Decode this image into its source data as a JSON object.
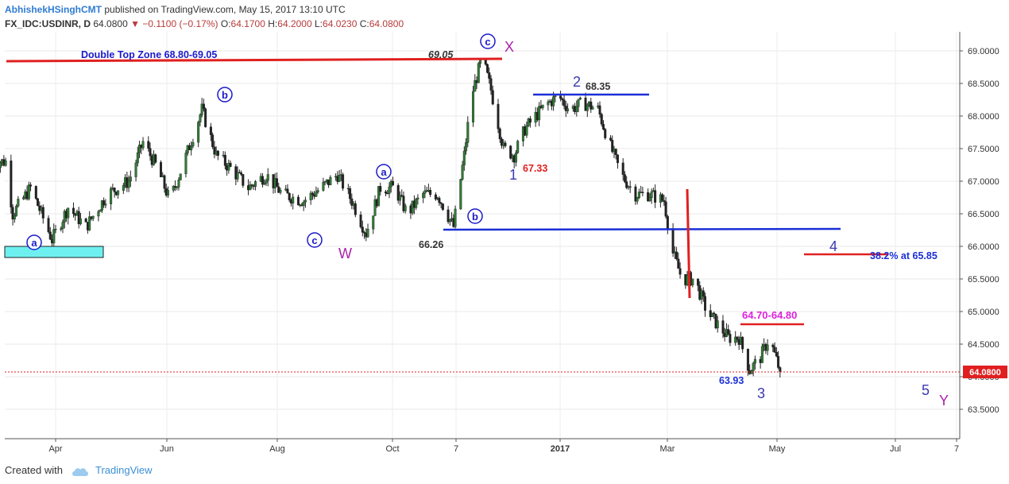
{
  "header": {
    "author": "AbhishekHSinghCMT",
    "published": "published on TradingView.com, May 15, 2017 13:10 UTC"
  },
  "ohlc": {
    "symbol": "FX_IDC:USDINR, D",
    "last": "64.0800",
    "arrow": "▼",
    "change": "−0.1100 (−0.17%)",
    "open_label": "O:",
    "open": "64.1700",
    "high_label": "H:",
    "high": "64.2000",
    "low_label": "L:",
    "low": "64.0230",
    "close_label": "C:",
    "close": "64.0800"
  },
  "footer": {
    "created_with": "Created with",
    "brand": "TradingView"
  },
  "colors": {
    "up": "#2e7d32",
    "down": "#222222",
    "red_line": "#e02020",
    "blue_line": "#1a2fd6",
    "wave_blue": "#1a1acc",
    "wave_purple": "#aa22aa",
    "price_tag": "#e02020",
    "zone": "#6ff0f0"
  },
  "chart_data": {
    "type": "candlestick",
    "symbol": "FX_IDC:USDINR",
    "timeframe": "D",
    "y_ticks": [
      "63.5000",
      "64.0000",
      "64.5000",
      "65.0000",
      "65.5000",
      "66.0000",
      "66.5000",
      "67.0000",
      "67.5000",
      "68.0000",
      "68.5000",
      "69.0000"
    ],
    "ylim": [
      63.3,
      69.25
    ],
    "x_ticks": [
      "Apr",
      "Jun",
      "Aug",
      "Oct",
      "7",
      "2017",
      "Mar",
      "May",
      "Jul",
      "7"
    ],
    "last_price_tag": "64.0800",
    "last_price": 64.08,
    "path": [
      [
        "2016-02-25",
        67.3
      ],
      [
        "2016-03-04",
        67.3
      ],
      [
        "2016-03-08",
        66.5
      ],
      [
        "2016-03-18",
        66.9
      ],
      [
        "2016-03-30",
        66.1
      ],
      [
        "2016-04-08",
        66.6
      ],
      [
        "2016-04-18",
        66.3
      ],
      [
        "2016-04-30",
        66.8
      ],
      [
        "2016-05-12",
        67.0
      ],
      [
        "2016-05-20",
        67.6
      ],
      [
        "2016-05-28",
        67.2
      ],
      [
        "2016-06-04",
        66.7
      ],
      [
        "2016-06-12",
        67.3
      ],
      [
        "2016-06-22",
        68.1
      ],
      [
        "2016-06-30",
        67.4
      ],
      [
        "2016-07-08",
        67.2
      ],
      [
        "2016-07-18",
        66.9
      ],
      [
        "2016-07-28",
        67.1
      ],
      [
        "2016-08-06",
        66.8
      ],
      [
        "2016-08-18",
        66.7
      ],
      [
        "2016-08-28",
        66.9
      ],
      [
        "2016-09-06",
        67.1
      ],
      [
        "2016-09-14",
        66.7
      ],
      [
        "2016-09-22",
        66.2
      ],
      [
        "2016-09-30",
        66.9
      ],
      [
        "2016-10-08",
        66.9
      ],
      [
        "2016-10-15",
        66.5
      ],
      [
        "2016-10-24",
        66.8
      ],
      [
        "2016-11-01",
        66.8
      ],
      [
        "2016-11-10",
        66.3
      ],
      [
        "2016-11-16",
        67.4
      ],
      [
        "2016-11-20",
        68.3
      ],
      [
        "2016-11-26",
        68.9
      ],
      [
        "2016-12-01",
        68.4
      ],
      [
        "2016-12-08",
        67.5
      ],
      [
        "2016-12-14",
        67.4
      ],
      [
        "2016-12-20",
        67.8
      ],
      [
        "2016-12-26",
        68.0
      ],
      [
        "2017-01-02",
        68.2
      ],
      [
        "2017-01-08",
        68.3
      ],
      [
        "2017-01-14",
        68.1
      ],
      [
        "2017-01-22",
        68.2
      ],
      [
        "2017-01-30",
        68.1
      ],
      [
        "2017-02-05",
        67.6
      ],
      [
        "2017-02-12",
        67.1
      ],
      [
        "2017-02-20",
        66.8
      ],
      [
        "2017-02-28",
        66.8
      ],
      [
        "2017-03-08",
        66.7
      ],
      [
        "2017-03-13",
        65.9
      ],
      [
        "2017-03-18",
        65.5
      ],
      [
        "2017-03-25",
        65.5
      ],
      [
        "2017-04-01",
        65.0
      ],
      [
        "2017-04-07",
        64.8
      ],
      [
        "2017-04-13",
        64.6
      ],
      [
        "2017-04-19",
        64.6
      ],
      [
        "2017-04-25",
        64.1
      ],
      [
        "2017-05-01",
        64.3
      ],
      [
        "2017-05-06",
        64.6
      ],
      [
        "2017-05-12",
        64.08
      ]
    ],
    "annotations": {
      "double_top_label": "Double Top Zone 68.80-69.05",
      "top_value": "69.05",
      "wave_x": "X",
      "wave_w": "W",
      "wave_y": "Y",
      "wave_1": "1",
      "wave_2": "2",
      "wave_3": "3",
      "wave_4": "4",
      "wave_5": "5",
      "val_68_35": "68.35",
      "val_67_33": "67.33",
      "val_66_26": "66.26",
      "val_63_93": "63.93",
      "zone_64_70": "64.70-64.80",
      "fib_label": "38.2% at 65.85",
      "sub_a": "a",
      "sub_b": "b",
      "sub_c": "c"
    }
  }
}
